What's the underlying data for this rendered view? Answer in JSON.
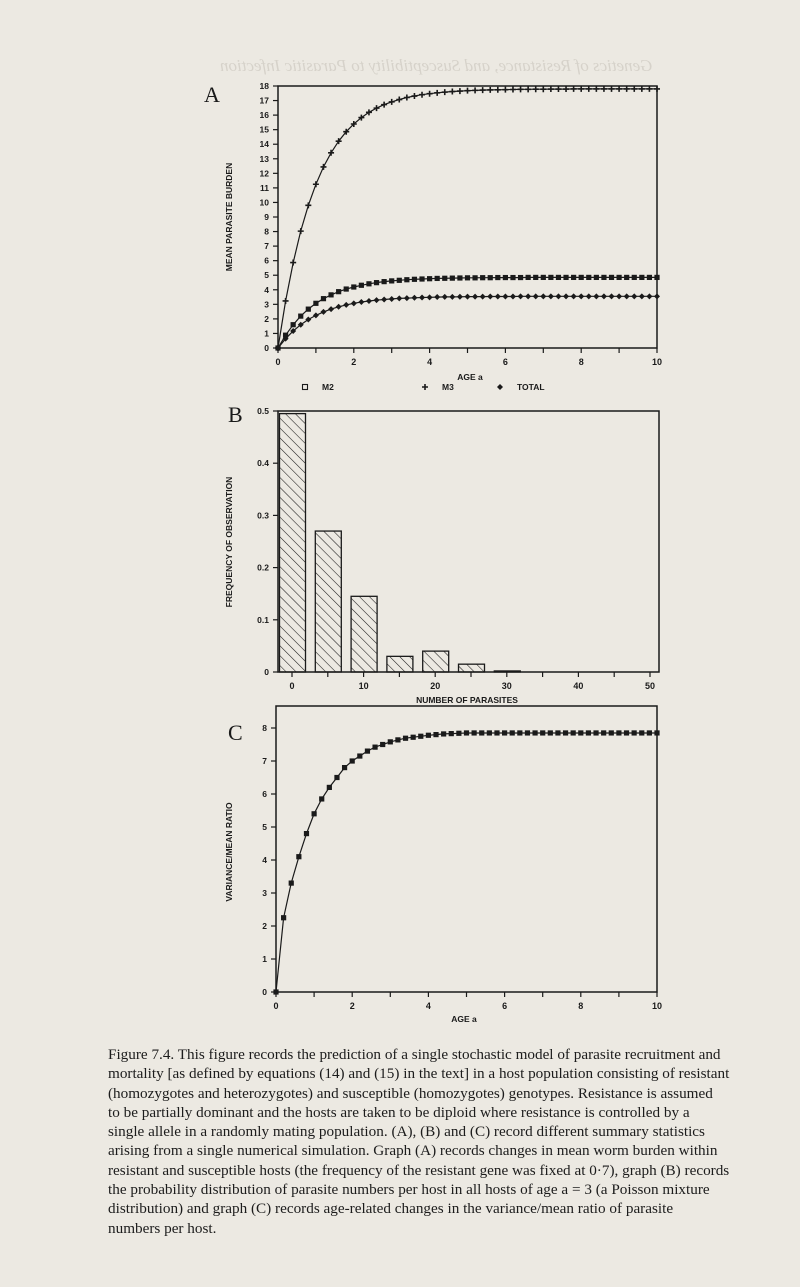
{
  "figure": {
    "panels": [
      "A",
      "B",
      "C"
    ],
    "caption": {
      "label": "Figure 7.4.",
      "lines": [
        "Figure 7.4.  This figure records the prediction of a single stochastic model of parasite recruitment and",
        "mortality [as defined by equations (14) and (15) in the text] in a host population consisting of resistant",
        "(homozygotes and heterozygotes) and susceptible (homozygotes) genotypes. Resistance is assumed",
        "to be partially dominant and the hosts are taken to be diploid where resistance is controlled by a",
        "single allele in a randomly mating population. (A), (B) and (C) record different summary statistics",
        "arising from a single numerical simulation. Graph (A) records changes in mean worm burden within",
        "resistant and susceptible hosts (the frequency of the resistant gene was fixed at 0·7), graph (B) records",
        "the probability distribution of parasite numbers per host in all hosts of age a = 3 (a Poisson mixture",
        "distribution) and graph (C) records age-related changes in the variance/mean ratio of parasite",
        "numbers per host."
      ]
    }
  },
  "chart_data": [
    {
      "panel": "A",
      "type": "line",
      "title": "",
      "xlabel": "AGE a",
      "ylabel": "MEAN PARASITE BURDEN",
      "xlim": [
        0,
        10
      ],
      "ylim": [
        0,
        18
      ],
      "xticks": [
        0,
        2,
        4,
        6,
        8,
        10
      ],
      "yticks": [
        0,
        1,
        2,
        3,
        4,
        5,
        6,
        7,
        8,
        9,
        10,
        11,
        12,
        13,
        14,
        15,
        16,
        17,
        18
      ],
      "grid": false,
      "legend": {
        "position": "below",
        "entries": [
          {
            "marker": "square",
            "label": "M2"
          },
          {
            "marker": "plus",
            "label": "M3"
          },
          {
            "marker": "diamond",
            "label": "TOTAL"
          }
        ]
      },
      "x": [
        0,
        0.2,
        0.4,
        0.6,
        0.8,
        1.0,
        1.2,
        1.4,
        1.6,
        1.8,
        2.0,
        2.2,
        2.4,
        2.6,
        2.8,
        3.0,
        3.2,
        3.4,
        3.6,
        3.8,
        4.0,
        4.2,
        4.4,
        4.6,
        4.8,
        5.0,
        5.2,
        5.4,
        5.6,
        5.8,
        6.0,
        6.2,
        6.4,
        6.6,
        6.8,
        7.0,
        7.2,
        7.4,
        7.6,
        7.8,
        8.0,
        8.2,
        8.4,
        8.6,
        8.8,
        9.0,
        9.2,
        9.4,
        9.6,
        9.8,
        10.0
      ],
      "series": [
        {
          "name": "upper curve (+ markers)",
          "marker": "plus",
          "values": [
            0,
            3.23,
            5.87,
            8.03,
            9.8,
            11.25,
            12.44,
            13.41,
            14.21,
            14.86,
            15.39,
            15.83,
            16.19,
            16.48,
            16.72,
            16.91,
            17.07,
            17.21,
            17.31,
            17.4,
            17.47,
            17.53,
            17.58,
            17.62,
            17.65,
            17.68,
            17.7,
            17.72,
            17.73,
            17.74,
            17.75,
            17.76,
            17.77,
            17.77,
            17.78,
            17.78,
            17.79,
            17.79,
            17.79,
            17.8,
            17.8,
            17.8,
            17.8,
            17.8,
            17.8,
            17.8,
            17.8,
            17.8,
            17.8,
            17.8,
            17.8
          ]
        },
        {
          "name": "middle curve (square markers)",
          "marker": "square",
          "values": [
            0,
            0.88,
            1.6,
            2.19,
            2.67,
            3.07,
            3.39,
            3.65,
            3.87,
            4.05,
            4.19,
            4.31,
            4.41,
            4.49,
            4.56,
            4.61,
            4.65,
            4.69,
            4.72,
            4.74,
            4.76,
            4.78,
            4.79,
            4.8,
            4.81,
            4.82,
            4.82,
            4.83,
            4.83,
            4.84,
            4.84,
            4.84,
            4.84,
            4.85,
            4.85,
            4.85,
            4.85,
            4.85,
            4.85,
            4.85,
            4.85,
            4.85,
            4.85,
            4.85,
            4.85,
            4.85,
            4.85,
            4.85,
            4.85,
            4.85,
            4.85
          ]
        },
        {
          "name": "lower curve (diamond markers)",
          "marker": "diamond",
          "values": [
            0,
            0.64,
            1.17,
            1.6,
            1.96,
            2.24,
            2.48,
            2.67,
            2.83,
            2.96,
            3.07,
            3.16,
            3.23,
            3.29,
            3.33,
            3.37,
            3.41,
            3.43,
            3.45,
            3.47,
            3.48,
            3.5,
            3.51,
            3.51,
            3.52,
            3.53,
            3.53,
            3.53,
            3.54,
            3.54,
            3.54,
            3.54,
            3.55,
            3.55,
            3.55,
            3.55,
            3.55,
            3.55,
            3.55,
            3.55,
            3.55,
            3.55,
            3.55,
            3.55,
            3.55,
            3.55,
            3.55,
            3.55,
            3.55,
            3.55,
            3.55
          ]
        }
      ]
    },
    {
      "panel": "B",
      "type": "bar",
      "title": "",
      "xlabel": "NUMBER OF PARASITES",
      "ylabel": "FREQUENCY OF OBSERVATION",
      "xlim": [
        -2,
        52
      ],
      "ylim": [
        0,
        0.5
      ],
      "xticks": [
        0,
        10,
        20,
        30,
        40,
        50
      ],
      "yticks": [
        0,
        0.1,
        0.2,
        0.3,
        0.4,
        0.5
      ],
      "ytick_labels": [
        "0",
        "0.1",
        "0.2",
        "0.3",
        "0.4",
        "0.5"
      ],
      "grid": false,
      "bar_fill": "hatched",
      "categories": [
        0,
        5,
        10,
        15,
        20,
        25,
        30
      ],
      "values": [
        0.495,
        0.27,
        0.145,
        0.03,
        0.04,
        0.015,
        0.002
      ]
    },
    {
      "panel": "C",
      "type": "line",
      "title": "",
      "xlabel": "AGE a",
      "ylabel": "VARIANCE/MEAN RATIO",
      "xlim": [
        0,
        10
      ],
      "ylim": [
        0,
        8
      ],
      "xticks": [
        0,
        2,
        4,
        6,
        8,
        10
      ],
      "yticks": [
        0,
        1,
        2,
        3,
        4,
        5,
        6,
        7,
        8
      ],
      "grid": false,
      "x": [
        0,
        0.2,
        0.4,
        0.6,
        0.8,
        1.0,
        1.2,
        1.4,
        1.6,
        1.8,
        2.0,
        2.2,
        2.4,
        2.6,
        2.8,
        3.0,
        3.2,
        3.4,
        3.6,
        3.8,
        4.0,
        4.2,
        4.4,
        4.6,
        4.8,
        5.0,
        5.2,
        5.4,
        5.6,
        5.8,
        6.0,
        6.2,
        6.4,
        6.6,
        6.8,
        7.0,
        7.2,
        7.4,
        7.6,
        7.8,
        8.0,
        8.2,
        8.4,
        8.6,
        8.8,
        9.0,
        9.2,
        9.4,
        9.6,
        9.8,
        10.0
      ],
      "series": [
        {
          "name": "variance/mean ratio",
          "marker": "square",
          "values": [
            0,
            2.25,
            3.3,
            4.1,
            4.8,
            5.4,
            5.85,
            6.2,
            6.5,
            6.8,
            7.0,
            7.15,
            7.3,
            7.42,
            7.5,
            7.58,
            7.64,
            7.69,
            7.72,
            7.75,
            7.78,
            7.8,
            7.82,
            7.83,
            7.84,
            7.85,
            7.85,
            7.85,
            7.85,
            7.85,
            7.85,
            7.85,
            7.85,
            7.85,
            7.85,
            7.85,
            7.85,
            7.85,
            7.85,
            7.85,
            7.85,
            7.85,
            7.85,
            7.85,
            7.85,
            7.85,
            7.85,
            7.85,
            7.85,
            7.85,
            7.85
          ]
        }
      ]
    }
  ]
}
